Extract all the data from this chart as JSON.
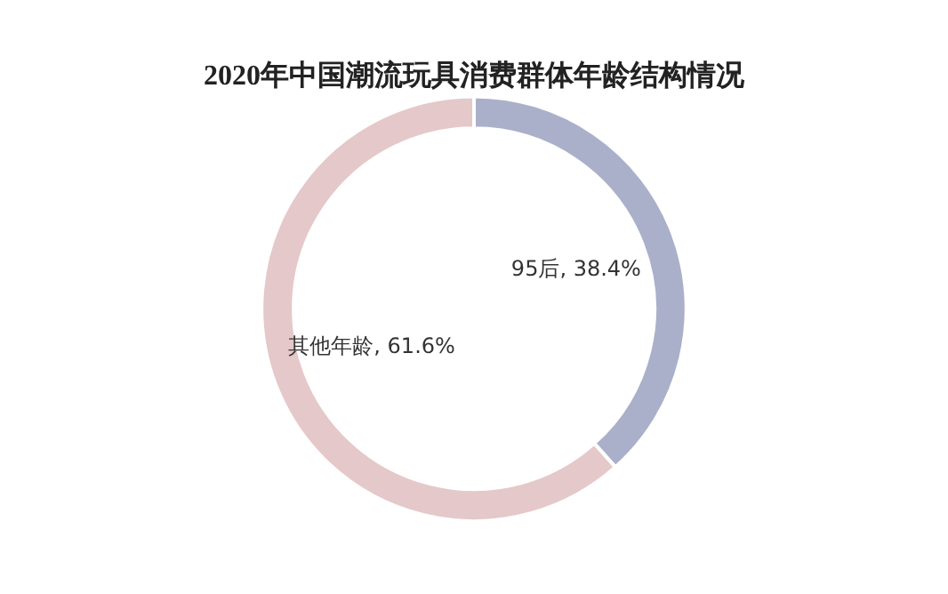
{
  "chart_data": {
    "type": "donut",
    "title": "2020年中国潮流玩具消费群体年龄结构情况",
    "categories": [
      "95后",
      "其他年龄"
    ],
    "values": [
      38.4,
      61.6
    ],
    "colors": [
      "#aab0c9",
      "#e5c8c9"
    ],
    "value_labels": [
      "38.4%",
      "61.6%"
    ],
    "legend": false
  }
}
